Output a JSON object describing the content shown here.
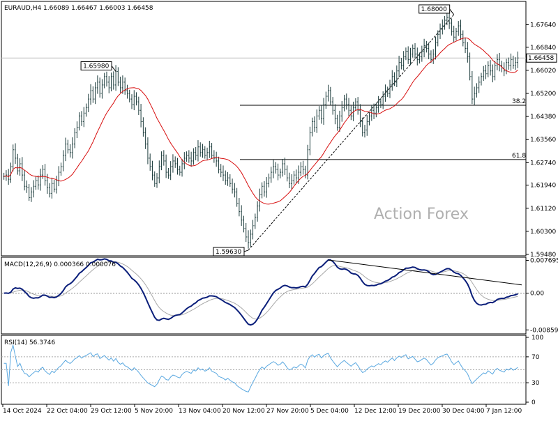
{
  "chart_data": [
    {
      "type": "candlestick",
      "header": "EURAUD,H4 1.66089 1.66467 1.66003 1.66458",
      "watermark": "Action Forex",
      "ylim": [
        1.5948,
        1.6842
      ],
      "y_ticks": [
        "1.67640",
        "1.66840",
        "1.66020",
        "1.65200",
        "1.64380",
        "1.63560",
        "1.62740",
        "1.61940",
        "1.61120",
        "1.60300",
        "1.59480"
      ],
      "current_price_label": "1.66458",
      "current_price": 1.66458,
      "annotations": [
        {
          "label": "1.65980",
          "value": 1.6598,
          "bar": 49
        },
        {
          "label": "1.59630",
          "value": 1.5963,
          "bar": 107
        },
        {
          "label": "1.68000",
          "value": 1.68,
          "bar": 197
        }
      ],
      "fib_levels": [
        {
          "label": "38.2",
          "value": 1.6478
        },
        {
          "label": "61.8",
          "value": 1.6285
        }
      ],
      "trendline": {
        "from": {
          "bar": 107,
          "value": 1.5963
        },
        "to": {
          "bar": 197,
          "value": 1.68
        }
      },
      "close_series": [
        1.6225,
        1.623,
        1.6215,
        1.626,
        1.632,
        1.629,
        1.6245,
        1.627,
        1.623,
        1.619,
        1.6185,
        1.615,
        1.617,
        1.619,
        1.621,
        1.6195,
        1.623,
        1.625,
        1.621,
        1.6185,
        1.6165,
        1.62,
        1.618,
        1.621,
        1.624,
        1.626,
        1.63,
        1.634,
        1.632,
        1.631,
        1.634,
        1.638,
        1.64,
        1.644,
        1.642,
        1.645,
        1.647,
        1.65,
        1.653,
        1.65,
        1.654,
        1.656,
        1.652,
        1.655,
        1.658,
        1.656,
        1.654,
        1.658,
        1.655,
        1.6598,
        1.656,
        1.654,
        1.656,
        1.653,
        1.652,
        1.65,
        1.648,
        1.651,
        1.649,
        1.646,
        1.642,
        1.638,
        1.634,
        1.629,
        1.626,
        1.623,
        1.62,
        1.622,
        1.626,
        1.63,
        1.628,
        1.624,
        1.623,
        1.626,
        1.628,
        1.627,
        1.625,
        1.624,
        1.627,
        1.629,
        1.63,
        1.629,
        1.628,
        1.631,
        1.63,
        1.633,
        1.631,
        1.632,
        1.63,
        1.631,
        1.633,
        1.63,
        1.629,
        1.628,
        1.625,
        1.624,
        1.623,
        1.621,
        1.622,
        1.62,
        1.618,
        1.617,
        1.613,
        1.61,
        1.607,
        1.604,
        1.601,
        1.599,
        1.602,
        1.605,
        1.608,
        1.612,
        1.616,
        1.619,
        1.617,
        1.62,
        1.622,
        1.624,
        1.626,
        1.625,
        1.623,
        1.624,
        1.627,
        1.625,
        1.622,
        1.62,
        1.621,
        1.623,
        1.622,
        1.624,
        1.626,
        1.625,
        1.623,
        1.632,
        1.638,
        1.642,
        1.64,
        1.644,
        1.646,
        1.643,
        1.648,
        1.651,
        1.653,
        1.649,
        1.646,
        1.643,
        1.64,
        1.644,
        1.647,
        1.65,
        1.648,
        1.646,
        1.644,
        1.647,
        1.649,
        1.646,
        1.642,
        1.638,
        1.639,
        1.642,
        1.644,
        1.646,
        1.645,
        1.647,
        1.649,
        1.648,
        1.651,
        1.653,
        1.652,
        1.655,
        1.658,
        1.656,
        1.66,
        1.663,
        1.662,
        1.665,
        1.667,
        1.664,
        1.666,
        1.668,
        1.666,
        1.664,
        1.665,
        1.667,
        1.669,
        1.668,
        1.666,
        1.664,
        1.666,
        1.67,
        1.673,
        1.675,
        1.676,
        1.678,
        1.679,
        1.677,
        1.674,
        1.672,
        1.674,
        1.676,
        1.673,
        1.67,
        1.668,
        1.665,
        1.658,
        1.65,
        1.652,
        1.654,
        1.656,
        1.658,
        1.66,
        1.659,
        1.662,
        1.66,
        1.658,
        1.662,
        1.664,
        1.662,
        1.661,
        1.66,
        1.663,
        1.662,
        1.664,
        1.662,
        1.663,
        1.6646
      ]
    },
    {
      "type": "line",
      "label": "MACD(12,26,9) 0.000366 0.000076",
      "ylim": [
        -0.0092,
        0.0081
      ],
      "y_ticks": [
        {
          "label": "0.007695",
          "value": 0.007695
        },
        {
          "label": "0.00",
          "value": 0.0
        },
        {
          "label": "-0.008599",
          "value": -0.008599
        }
      ]
    },
    {
      "type": "line",
      "label": "RSI(14) 56.3746",
      "ylim": [
        0,
        100
      ],
      "y_ticks": [
        {
          "label": "100",
          "value": 100
        },
        {
          "label": "70",
          "value": 70
        },
        {
          "label": "30",
          "value": 30
        },
        {
          "label": "0",
          "value": 0
        }
      ],
      "levels": [
        70,
        50,
        30
      ]
    }
  ],
  "x_axis_labels": [
    "14 Oct 2024",
    "22 Oct 04:00",
    "29 Oct 12:00",
    "5 Nov 20:00",
    "13 Nov 04:00",
    "20 Nov 12:00",
    "27 Nov 20:00",
    "5 Dec 04:00",
    "12 Dec 12:00",
    "19 Dec 20:00",
    "30 Dec 04:00",
    "7 Jan 12:00"
  ],
  "colors": {
    "candle": "#1a3a3a",
    "ma": "#d81010",
    "macd": "#0a1e7a",
    "signal": "#a8a8a8",
    "rsi": "#5aa8e0",
    "grid": "#888888"
  }
}
